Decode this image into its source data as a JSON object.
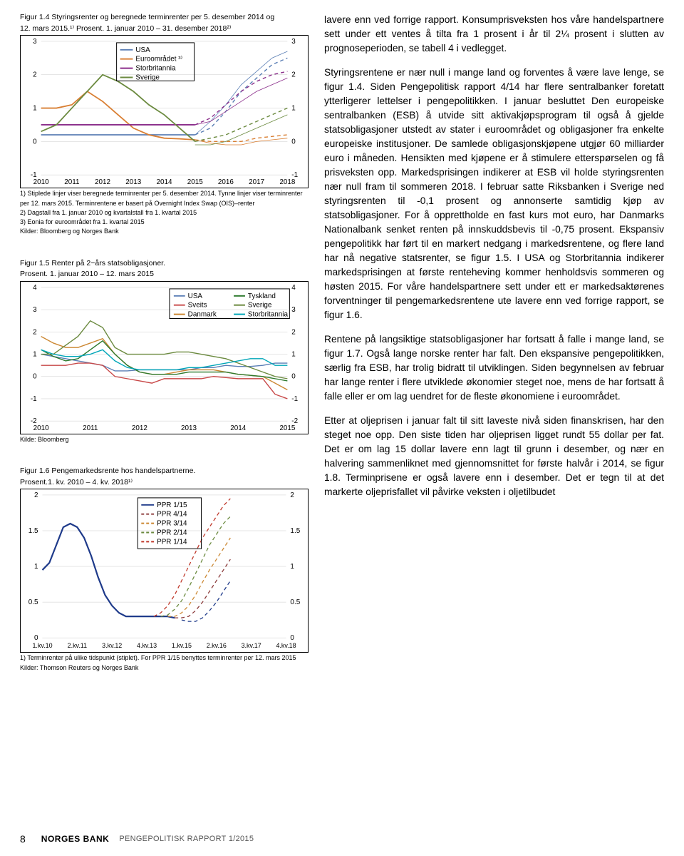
{
  "chart1": {
    "title_line1": "Figur 1.4 Styringsrenter og beregnede terminrenter per 5. desember 2014 og",
    "title_line2": "12. mars 2015.¹⁾ Prosent. 1. januar 2010 – 31. desember 2018²⁾",
    "legend": [
      "USA",
      "Euroområdet ³⁾",
      "Storbritannia",
      "Sverige"
    ],
    "legend_colors": [
      "#5b7fb5",
      "#d97f33",
      "#8b2e8b",
      "#6b8a3f"
    ],
    "xticks": [
      "2010",
      "2011",
      "2012",
      "2013",
      "2014",
      "2015",
      "2016",
      "2017",
      "2018"
    ],
    "yticks": [
      -1,
      0,
      1,
      2,
      3
    ],
    "footnotes": [
      "1) Stiplede linjer viser beregnede terminrenter per 5. desember 2014. Tynne linjer viser terminrenter",
      "per 12. mars 2015. Terminrentene er basert på Overnight Index Swap (OIS)–renter",
      "2) Dagstall fra 1. januar 2010 og kvartalstall fra 1. kvartal 2015",
      "3) Eonia for euroområdet fra 1. kvartal 2015",
      "Kilder: Bloomberg og Norges Bank"
    ],
    "series": {
      "usa": {
        "color": "#5b7fb5",
        "solid": [
          0.2,
          0.2,
          0.2,
          0.2,
          0.2,
          0.2,
          0.2,
          0.2,
          0.2,
          0.2,
          0.2
        ],
        "dashed": [
          0.2,
          0.4,
          0.9,
          1.5,
          1.9,
          2.3,
          2.5
        ],
        "thin": [
          0.2,
          0.6,
          1.1,
          1.7,
          2.1,
          2.5,
          2.7
        ]
      },
      "euro": {
        "color": "#d97f33",
        "solid": [
          1.0,
          1.0,
          1.1,
          1.5,
          1.2,
          0.8,
          0.4,
          0.2,
          0.1,
          0.08,
          0.05
        ],
        "dashed": [
          0.05,
          0.0,
          0.0,
          0.0,
          0.1,
          0.15,
          0.2
        ],
        "thin": [
          0.05,
          -0.05,
          -0.1,
          -0.1,
          0.0,
          0.05,
          0.1
        ]
      },
      "uk": {
        "color": "#8b2e8b",
        "solid": [
          0.5,
          0.5,
          0.5,
          0.5,
          0.5,
          0.5,
          0.5,
          0.5,
          0.5,
          0.5,
          0.5
        ],
        "dashed": [
          0.5,
          0.7,
          1.1,
          1.5,
          1.8,
          2.0,
          2.1
        ],
        "thin": [
          0.5,
          0.6,
          0.9,
          1.2,
          1.5,
          1.7,
          1.9
        ]
      },
      "sweden": {
        "color": "#6b8a3f",
        "solid": [
          0.3,
          0.5,
          1.0,
          1.5,
          2.0,
          1.8,
          1.5,
          1.1,
          0.8,
          0.4,
          0.0
        ],
        "dashed": [
          0.0,
          0.1,
          0.2,
          0.4,
          0.6,
          0.8,
          1.0
        ],
        "thin": [
          -0.1,
          -0.1,
          0.0,
          0.2,
          0.4,
          0.6,
          0.8
        ]
      }
    }
  },
  "chart2": {
    "title_line1": "Figur 1.5 Renter på 2−års statsobligasjoner.",
    "title_line2": "Prosent. 1. januar 2010 – 12. mars 2015",
    "legend": [
      "USA",
      "Sveits",
      "Danmark",
      "Tyskland",
      "Sverige",
      "Storbritannia"
    ],
    "legend_colors": [
      "#5b7fb5",
      "#c84848",
      "#cc8833",
      "#2e7a2e",
      "#6b8a3f",
      "#00a6b8"
    ],
    "xticks": [
      "2010",
      "2011",
      "2012",
      "2013",
      "2014",
      "2015"
    ],
    "yticks": [
      -2,
      -1,
      0,
      1,
      2,
      3,
      4
    ],
    "footnotes": [
      "Kilde: Bloomberg"
    ],
    "series": {
      "usa": {
        "color": "#5b7fb5",
        "vals": [
          1.0,
          0.9,
          0.8,
          0.7,
          0.6,
          0.5,
          0.25,
          0.25,
          0.3,
          0.3,
          0.3,
          0.3,
          0.3,
          0.4,
          0.4,
          0.5,
          0.45,
          0.45,
          0.5,
          0.6,
          0.6
        ]
      },
      "sveits": {
        "color": "#c84848",
        "vals": [
          0.5,
          0.5,
          0.5,
          0.6,
          0.6,
          0.5,
          0.0,
          -0.1,
          -0.2,
          -0.3,
          -0.1,
          -0.1,
          -0.1,
          -0.1,
          0.0,
          -0.05,
          -0.1,
          -0.1,
          -0.1,
          -0.8,
          -1.0
        ]
      },
      "danmark": {
        "color": "#cc8833",
        "vals": [
          1.8,
          1.5,
          1.3,
          1.3,
          1.5,
          1.7,
          1.0,
          0.5,
          0.2,
          0.1,
          0.1,
          0.2,
          0.3,
          0.3,
          0.3,
          0.2,
          0.1,
          0.05,
          0.0,
          -0.3,
          -0.6
        ]
      },
      "tyskland": {
        "color": "#2e7a2e",
        "vals": [
          1.2,
          0.9,
          0.7,
          0.8,
          1.2,
          1.6,
          1.0,
          0.5,
          0.2,
          0.1,
          0.1,
          0.1,
          0.2,
          0.2,
          0.2,
          0.2,
          0.1,
          0.05,
          0.0,
          -0.1,
          -0.2
        ]
      },
      "sverige": {
        "color": "#6b8a3f",
        "vals": [
          1.0,
          1.0,
          1.4,
          1.8,
          2.5,
          2.2,
          1.3,
          1.0,
          1.0,
          1.0,
          1.0,
          1.1,
          1.1,
          1.0,
          0.9,
          0.8,
          0.6,
          0.4,
          0.2,
          0.0,
          -0.1
        ]
      },
      "uk": {
        "color": "#00a6b8",
        "vals": [
          1.2,
          1.0,
          0.9,
          0.9,
          1.0,
          1.2,
          0.7,
          0.4,
          0.3,
          0.3,
          0.3,
          0.3,
          0.4,
          0.4,
          0.5,
          0.6,
          0.7,
          0.8,
          0.8,
          0.5,
          0.5
        ]
      }
    }
  },
  "chart3": {
    "title_line1": "Figur 1.6 Pengemarkedsrente hos handelspartnerne.",
    "title_line2": "Prosent.1. kv. 2010 – 4. kv. 2018¹⁾",
    "legend": [
      "PPR 1/15",
      "PPR 4/14",
      "PPR 3/14",
      "PPR 2/14",
      "PPR 1/14"
    ],
    "legend_colors": [
      "#1e3a8a",
      "#8b3a3a",
      "#cc8833",
      "#6b8a3f",
      "#c0392b"
    ],
    "xticks": [
      "1.kv.10",
      "2.kv.11",
      "3.kv.12",
      "4.kv.13",
      "1.kv.15",
      "2.kv.16",
      "3.kv.17",
      "4.kv.18"
    ],
    "yticks": [
      0,
      0.5,
      1,
      1.5,
      2
    ],
    "footnotes": [
      "1) Terminrenter på ulike tidspunkt (stiplet). For PPR 1/15 benyttes terminrenter per 12. mars 2015",
      "Kilder: Thomson Reuters og Norges Bank"
    ],
    "solid": {
      "color": "#1e3a8a",
      "vals": [
        0.95,
        1.05,
        1.3,
        1.55,
        1.6,
        1.55,
        1.4,
        1.15,
        0.85,
        0.6,
        0.45,
        0.35,
        0.3,
        0.3,
        0.3,
        0.3,
        0.3,
        0.3,
        0.3,
        0.28
      ]
    },
    "dashed": [
      {
        "color": "#c0392b",
        "start": 16,
        "vals": [
          0.3,
          0.35,
          0.45,
          0.6,
          0.8,
          1.0,
          1.2,
          1.4,
          1.55,
          1.7,
          1.85,
          1.95
        ]
      },
      {
        "color": "#6b8a3f",
        "start": 17,
        "vals": [
          0.3,
          0.32,
          0.4,
          0.52,
          0.7,
          0.9,
          1.1,
          1.3,
          1.45,
          1.6,
          1.7
        ]
      },
      {
        "color": "#cc8833",
        "start": 18,
        "vals": [
          0.3,
          0.3,
          0.35,
          0.45,
          0.6,
          0.78,
          0.95,
          1.1,
          1.25,
          1.4
        ]
      },
      {
        "color": "#8b3a3a",
        "start": 19,
        "vals": [
          0.28,
          0.28,
          0.3,
          0.38,
          0.5,
          0.65,
          0.8,
          0.95,
          1.1
        ]
      },
      {
        "color": "#1e3a8a",
        "start": 20,
        "vals": [
          0.25,
          0.23,
          0.23,
          0.28,
          0.38,
          0.5,
          0.65,
          0.8
        ]
      }
    ]
  },
  "body": {
    "p1": "lavere enn ved forrige rapport. Konsumprisveksten hos våre handelspartnere sett under ett ventes å tilta fra 1 prosent i år til 2¼ prosent i slutten av prognose­perioden, se tabell 4 i vedlegget.",
    "p2": "Styringsrentene er nær null i mange land og forventes å være lave lenge, se figur 1.4. Siden Pengepolitisk rapport 4/14 har flere sentralbanker foretatt ytter­ligerer lettelser i pengepolitikken. I januar besluttet Den europeiske sentralbanken (ESB) å utvide sitt aktiva­kjøpsprogram til også å gjelde statsobligasjoner utstedt av stater i euroområdet og obligasjoner fra enkelte europeiske institusjoner. De samlede obliga­sjonskjøpene utgjør 60 milliarder euro i måneden. Hensikten med kjøpene er å stimulere etterspørselen og få prisveksten opp. Markedsprisingen indikerer at ESB vil holde styringsrenten nær null fram til sommeren 2018. I februar satte Riksbanken i Sverige ned styringsrenten til -0,1 prosent og annonserte samtidig kjøp av statsobligasjoner. For å opprettholde en fast kurs mot euro, har Danmarks Nationalbank senket renten på innskuddsbevis til -0,75 prosent. Ekspansiv pengepolitikk har ført til en markert nedgang i markedsrentene, og flere land har nå nega­tive statsrenter, se figur 1.5. I USA og Storbritannia indikerer markedsprisingen at første renteheving kommer henholdsvis sommeren og høsten 2015. For våre handelspartnere sett under ett er markeds­aktørenes forventninger til pengemarkedsrentene ute lavere enn ved forrige rapport, se figur 1.6.",
    "p3": "Rentene på langsiktige statsobligasjoner har fortsatt å falle i mange land, se figur 1.7. Også lange norske renter har falt. Den ekspansive pengepolitikken, særlig fra ESB, har trolig bidratt til utviklingen. Siden begyn­nelsen av februar har lange renter i flere utviklede økonomier steget noe, mens de har fortsatt å falle eller er om lag uendret for de fleste økonomiene i euroområdet.",
    "p4": "Etter at oljeprisen i januar falt til sitt laveste nivå siden finanskrisen, har den steget noe opp. Den siste tiden har oljeprisen ligget rundt 55 dollar per fat. Det er om lag 15 dollar lavere enn lagt til grunn i desember, og nær en halvering sammenliknet med gjennomsnittet for første halvår i 2014, se figur 1.8. Terminprisene er også lavere enn i desember. Det er tegn til at det markerte oljeprisfallet vil påvirke veksten i oljetilbudet"
  },
  "footer": {
    "page": "8",
    "bank": "NORGES BANK",
    "report": "PENGEPOLITISK RAPPORT  1/2015"
  }
}
